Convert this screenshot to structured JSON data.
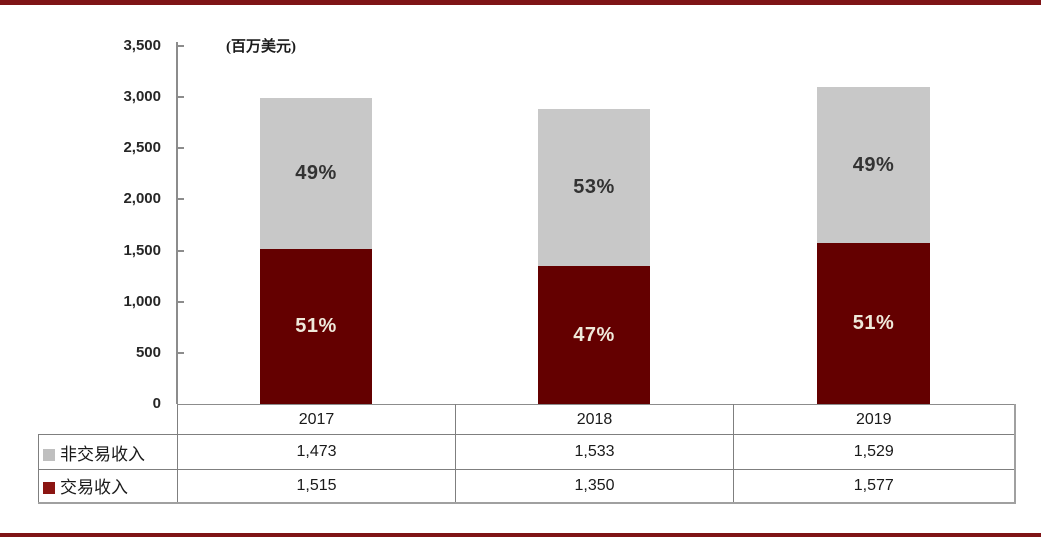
{
  "rules": {
    "color": "#7f1416"
  },
  "chart_data": {
    "type": "stacked-bar",
    "unit_label": "(百万美元)",
    "categories": [
      "2017",
      "2018",
      "2019"
    ],
    "series": [
      {
        "name": "非交易收入",
        "color": "#c8c8c8",
        "swatch_color": "#bfbfbf",
        "values": [
          1473,
          1533,
          1529
        ],
        "display_values": [
          "1,473",
          "1,533",
          "1,529"
        ],
        "pct_labels": [
          "49%",
          "53%",
          "49%"
        ],
        "label_color": "#333333"
      },
      {
        "name": "交易收入",
        "color": "#640000",
        "swatch_color": "#8b1512",
        "values": [
          1515,
          1350,
          1577
        ],
        "display_values": [
          "1,515",
          "1,350",
          "1,577"
        ],
        "pct_labels": [
          "51%",
          "47%",
          "51%"
        ],
        "label_color": "#efe9da"
      }
    ],
    "y_ticks": [
      "3,500",
      "3,000",
      "2,500",
      "2,000",
      "1,500",
      "1,000",
      "500",
      "0"
    ],
    "ylim": [
      0,
      3500
    ],
    "grid": false,
    "legend_position": "table-left"
  }
}
